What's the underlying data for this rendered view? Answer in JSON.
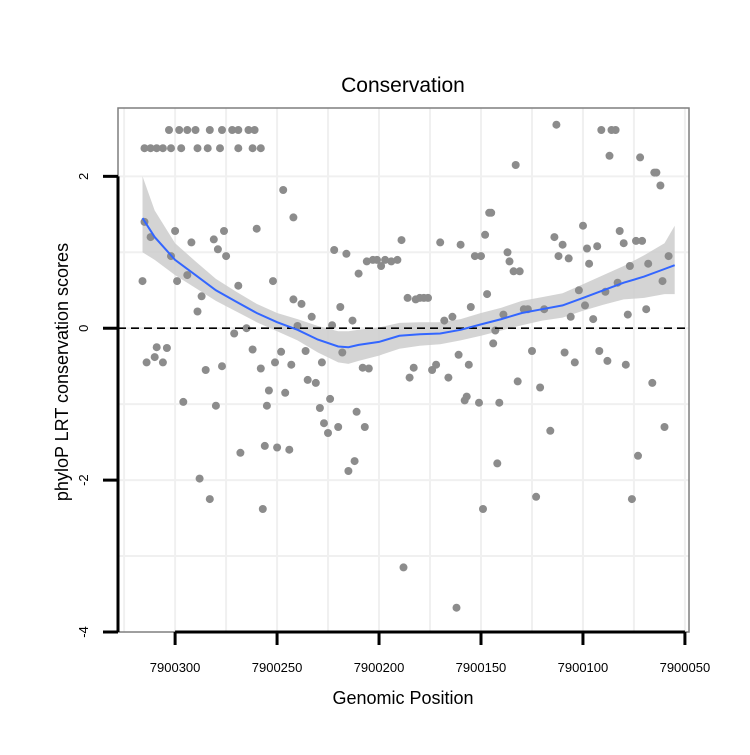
{
  "chart_data": {
    "type": "scatter",
    "title": "Conservation",
    "xlabel": "Genomic Position",
    "ylabel": "phyloP LRT conservation scores",
    "x_reversed": true,
    "xlim": [
      7900328,
      7900048
    ],
    "ylim": [
      -4,
      2.9
    ],
    "x_ticks": [
      7900300,
      7900250,
      7900200,
      7900150,
      7900100,
      7900050
    ],
    "x_tick_labels": [
      "7900300",
      "7900250",
      "7900200",
      "7900150",
      "7900100",
      "7900050"
    ],
    "y_ticks": [
      -4,
      -2,
      0,
      2
    ],
    "y_tick_labels": [
      "-4",
      "-2",
      "0",
      "2"
    ],
    "grid": true,
    "reference_line": {
      "y": 0,
      "style": "dashed",
      "color": "#000000"
    },
    "colors": {
      "points": "#8c8c8c",
      "smooth_line": "#3366ff",
      "ribbon": "#cccccc",
      "panel_border": "#7f7f7f",
      "grid": "#f0f0f0"
    },
    "smooth": {
      "x": [
        7900316,
        7900310,
        7900300,
        7900290,
        7900280,
        7900270,
        7900260,
        7900250,
        7900240,
        7900230,
        7900220,
        7900215,
        7900210,
        7900200,
        7900190,
        7900180,
        7900170,
        7900160,
        7900150,
        7900140,
        7900130,
        7900120,
        7900110,
        7900100,
        7900090,
        7900080,
        7900070,
        7900060,
        7900055
      ],
      "y": [
        1.45,
        1.2,
        0.9,
        0.7,
        0.5,
        0.35,
        0.2,
        0.08,
        -0.02,
        -0.15,
        -0.24,
        -0.25,
        -0.22,
        -0.18,
        -0.1,
        -0.08,
        -0.07,
        -0.02,
        0.05,
        0.12,
        0.2,
        0.25,
        0.3,
        0.4,
        0.5,
        0.6,
        0.68,
        0.78,
        0.83
      ],
      "lower": [
        1.0,
        0.9,
        0.7,
        0.53,
        0.36,
        0.22,
        0.08,
        -0.04,
        -0.16,
        -0.32,
        -0.45,
        -0.47,
        -0.43,
        -0.36,
        -0.27,
        -0.23,
        -0.21,
        -0.16,
        -0.1,
        -0.03,
        0.04,
        0.1,
        0.14,
        0.23,
        0.31,
        0.38,
        0.4,
        0.45,
        0.45
      ],
      "upper": [
        2.0,
        1.55,
        1.12,
        0.88,
        0.65,
        0.48,
        0.32,
        0.2,
        0.12,
        0.03,
        -0.04,
        -0.04,
        -0.02,
        0.01,
        0.07,
        0.08,
        0.08,
        0.12,
        0.2,
        0.27,
        0.36,
        0.41,
        0.46,
        0.58,
        0.7,
        0.82,
        0.96,
        1.12,
        1.35
      ]
    },
    "points": [
      {
        "x": 7900315,
        "y": 2.37
      },
      {
        "x": 7900312,
        "y": 2.37
      },
      {
        "x": 7900309,
        "y": 2.37
      },
      {
        "x": 7900306,
        "y": 2.37
      },
      {
        "x": 7900302,
        "y": 2.37
      },
      {
        "x": 7900297,
        "y": 2.37
      },
      {
        "x": 7900289,
        "y": 2.37
      },
      {
        "x": 7900284,
        "y": 2.37
      },
      {
        "x": 7900278,
        "y": 2.37
      },
      {
        "x": 7900269,
        "y": 2.37
      },
      {
        "x": 7900262,
        "y": 2.37
      },
      {
        "x": 7900258,
        "y": 2.37
      },
      {
        "x": 7900303,
        "y": 2.61
      },
      {
        "x": 7900298,
        "y": 2.61
      },
      {
        "x": 7900294,
        "y": 2.61
      },
      {
        "x": 7900290,
        "y": 2.61
      },
      {
        "x": 7900283,
        "y": 2.61
      },
      {
        "x": 7900277,
        "y": 2.61
      },
      {
        "x": 7900272,
        "y": 2.61
      },
      {
        "x": 7900269,
        "y": 2.61
      },
      {
        "x": 7900264,
        "y": 2.61
      },
      {
        "x": 7900261,
        "y": 2.61
      },
      {
        "x": 7900316,
        "y": 0.62
      },
      {
        "x": 7900315,
        "y": 1.4
      },
      {
        "x": 7900312,
        "y": 1.2
      },
      {
        "x": 7900309,
        "y": -0.25
      },
      {
        "x": 7900310,
        "y": -0.38
      },
      {
        "x": 7900314,
        "y": -0.45
      },
      {
        "x": 7900306,
        "y": -0.45
      },
      {
        "x": 7900304,
        "y": -0.26
      },
      {
        "x": 7900302,
        "y": 0.95
      },
      {
        "x": 7900300,
        "y": 1.28
      },
      {
        "x": 7900299,
        "y": 0.62
      },
      {
        "x": 7900296,
        "y": -0.97
      },
      {
        "x": 7900294,
        "y": 0.7
      },
      {
        "x": 7900292,
        "y": 1.13
      },
      {
        "x": 7900289,
        "y": 0.22
      },
      {
        "x": 7900288,
        "y": -1.98
      },
      {
        "x": 7900287,
        "y": 0.42
      },
      {
        "x": 7900285,
        "y": -0.55
      },
      {
        "x": 7900283,
        "y": -2.25
      },
      {
        "x": 7900281,
        "y": 1.17
      },
      {
        "x": 7900280,
        "y": -1.02
      },
      {
        "x": 7900279,
        "y": 1.04
      },
      {
        "x": 7900276,
        "y": 1.28
      },
      {
        "x": 7900275,
        "y": 0.95
      },
      {
        "x": 7900277,
        "y": -0.5
      },
      {
        "x": 7900271,
        "y": -0.07
      },
      {
        "x": 7900269,
        "y": 0.56
      },
      {
        "x": 7900268,
        "y": -1.64
      },
      {
        "x": 7900265,
        "y": -0.0
      },
      {
        "x": 7900262,
        "y": -0.28
      },
      {
        "x": 7900260,
        "y": 1.31
      },
      {
        "x": 7900258,
        "y": -0.53
      },
      {
        "x": 7900257,
        "y": -2.38
      },
      {
        "x": 7900256,
        "y": -1.55
      },
      {
        "x": 7900254,
        "y": -0.82
      },
      {
        "x": 7900255,
        "y": -1.02
      },
      {
        "x": 7900252,
        "y": 0.62
      },
      {
        "x": 7900251,
        "y": -0.45
      },
      {
        "x": 7900250,
        "y": -1.57
      },
      {
        "x": 7900248,
        "y": -0.31
      },
      {
        "x": 7900247,
        "y": 1.82
      },
      {
        "x": 7900246,
        "y": -0.85
      },
      {
        "x": 7900244,
        "y": -1.6
      },
      {
        "x": 7900243,
        "y": -0.48
      },
      {
        "x": 7900242,
        "y": 1.46
      },
      {
        "x": 7900242,
        "y": 0.38
      },
      {
        "x": 7900240,
        "y": 0.03
      },
      {
        "x": 7900238,
        "y": 0.32
      },
      {
        "x": 7900236,
        "y": -0.3
      },
      {
        "x": 7900235,
        "y": -0.68
      },
      {
        "x": 7900233,
        "y": 0.15
      },
      {
        "x": 7900231,
        "y": -0.72
      },
      {
        "x": 7900229,
        "y": -1.05
      },
      {
        "x": 7900228,
        "y": -0.45
      },
      {
        "x": 7900227,
        "y": -1.25
      },
      {
        "x": 7900225,
        "y": -1.38
      },
      {
        "x": 7900224,
        "y": -0.93
      },
      {
        "x": 7900223,
        "y": 0.04
      },
      {
        "x": 7900222,
        "y": 1.03
      },
      {
        "x": 7900220,
        "y": -1.3
      },
      {
        "x": 7900219,
        "y": 0.28
      },
      {
        "x": 7900218,
        "y": -0.32
      },
      {
        "x": 7900216,
        "y": 0.98
      },
      {
        "x": 7900215,
        "y": -1.88
      },
      {
        "x": 7900213,
        "y": 0.1
      },
      {
        "x": 7900212,
        "y": -1.75
      },
      {
        "x": 7900211,
        "y": -1.1
      },
      {
        "x": 7900210,
        "y": 0.72
      },
      {
        "x": 7900208,
        "y": -0.52
      },
      {
        "x": 7900207,
        "y": -1.3
      },
      {
        "x": 7900206,
        "y": 0.88
      },
      {
        "x": 7900205,
        "y": -0.53
      },
      {
        "x": 7900203,
        "y": 0.9
      },
      {
        "x": 7900201,
        "y": 0.9
      },
      {
        "x": 7900199,
        "y": 0.82
      },
      {
        "x": 7900197,
        "y": 0.9
      },
      {
        "x": 7900194,
        "y": 0.88
      },
      {
        "x": 7900191,
        "y": 0.9
      },
      {
        "x": 7900189,
        "y": 1.16
      },
      {
        "x": 7900188,
        "y": -3.15
      },
      {
        "x": 7900186,
        "y": 0.4
      },
      {
        "x": 7900185,
        "y": -0.65
      },
      {
        "x": 7900183,
        "y": -0.52
      },
      {
        "x": 7900182,
        "y": 0.38
      },
      {
        "x": 7900180,
        "y": 0.4
      },
      {
        "x": 7900178,
        "y": 0.4
      },
      {
        "x": 7900176,
        "y": 0.4
      },
      {
        "x": 7900174,
        "y": -0.55
      },
      {
        "x": 7900172,
        "y": -0.48
      },
      {
        "x": 7900170,
        "y": 1.13
      },
      {
        "x": 7900168,
        "y": 0.1
      },
      {
        "x": 7900166,
        "y": -0.65
      },
      {
        "x": 7900164,
        "y": 0.15
      },
      {
        "x": 7900162,
        "y": -3.68
      },
      {
        "x": 7900161,
        "y": -0.35
      },
      {
        "x": 7900160,
        "y": 1.1
      },
      {
        "x": 7900158,
        "y": -0.95
      },
      {
        "x": 7900157,
        "y": -0.9
      },
      {
        "x": 7900156,
        "y": -0.48
      },
      {
        "x": 7900155,
        "y": 0.28
      },
      {
        "x": 7900153,
        "y": 0.95
      },
      {
        "x": 7900151,
        "y": -0.98
      },
      {
        "x": 7900150,
        "y": 0.95
      },
      {
        "x": 7900149,
        "y": -2.38
      },
      {
        "x": 7900148,
        "y": 1.23
      },
      {
        "x": 7900147,
        "y": 0.45
      },
      {
        "x": 7900146,
        "y": 1.52
      },
      {
        "x": 7900145,
        "y": 1.52
      },
      {
        "x": 7900144,
        "y": -0.2
      },
      {
        "x": 7900143,
        "y": -0.03
      },
      {
        "x": 7900142,
        "y": -1.78
      },
      {
        "x": 7900141,
        "y": -0.98
      },
      {
        "x": 7900139,
        "y": 0.18
      },
      {
        "x": 7900137,
        "y": 1.0
      },
      {
        "x": 7900136,
        "y": 0.88
      },
      {
        "x": 7900134,
        "y": 0.75
      },
      {
        "x": 7900133,
        "y": 2.15
      },
      {
        "x": 7900132,
        "y": -0.7
      },
      {
        "x": 7900131,
        "y": 0.75
      },
      {
        "x": 7900129,
        "y": 0.25
      },
      {
        "x": 7900127,
        "y": 0.25
      },
      {
        "x": 7900125,
        "y": -0.3
      },
      {
        "x": 7900123,
        "y": -2.22
      },
      {
        "x": 7900121,
        "y": -0.78
      },
      {
        "x": 7900119,
        "y": 0.25
      },
      {
        "x": 7900116,
        "y": -1.35
      },
      {
        "x": 7900114,
        "y": 1.2
      },
      {
        "x": 7900113,
        "y": 2.68
      },
      {
        "x": 7900112,
        "y": 0.95
      },
      {
        "x": 7900110,
        "y": 1.1
      },
      {
        "x": 7900109,
        "y": -0.32
      },
      {
        "x": 7900107,
        "y": 0.92
      },
      {
        "x": 7900106,
        "y": 0.15
      },
      {
        "x": 7900104,
        "y": -0.45
      },
      {
        "x": 7900102,
        "y": 0.5
      },
      {
        "x": 7900100,
        "y": 1.35
      },
      {
        "x": 7900099,
        "y": 0.3
      },
      {
        "x": 7900098,
        "y": 1.05
      },
      {
        "x": 7900097,
        "y": 0.85
      },
      {
        "x": 7900095,
        "y": 0.12
      },
      {
        "x": 7900093,
        "y": 1.08
      },
      {
        "x": 7900092,
        "y": -0.3
      },
      {
        "x": 7900091,
        "y": 2.61
      },
      {
        "x": 7900089,
        "y": 0.48
      },
      {
        "x": 7900088,
        "y": -0.43
      },
      {
        "x": 7900087,
        "y": 2.27
      },
      {
        "x": 7900086,
        "y": 2.61
      },
      {
        "x": 7900084,
        "y": 2.61
      },
      {
        "x": 7900083,
        "y": 0.6
      },
      {
        "x": 7900082,
        "y": 1.28
      },
      {
        "x": 7900080,
        "y": 1.12
      },
      {
        "x": 7900079,
        "y": -0.48
      },
      {
        "x": 7900078,
        "y": 0.18
      },
      {
        "x": 7900077,
        "y": 0.82
      },
      {
        "x": 7900076,
        "y": -2.25
      },
      {
        "x": 7900074,
        "y": 1.15
      },
      {
        "x": 7900073,
        "y": -1.68
      },
      {
        "x": 7900072,
        "y": 2.25
      },
      {
        "x": 7900071,
        "y": 1.15
      },
      {
        "x": 7900069,
        "y": 0.25
      },
      {
        "x": 7900068,
        "y": 0.85
      },
      {
        "x": 7900066,
        "y": -0.72
      },
      {
        "x": 7900065,
        "y": 2.05
      },
      {
        "x": 7900064,
        "y": 2.05
      },
      {
        "x": 7900062,
        "y": 1.88
      },
      {
        "x": 7900061,
        "y": 0.62
      },
      {
        "x": 7900060,
        "y": -1.3
      },
      {
        "x": 7900058,
        "y": 0.95
      }
    ]
  }
}
